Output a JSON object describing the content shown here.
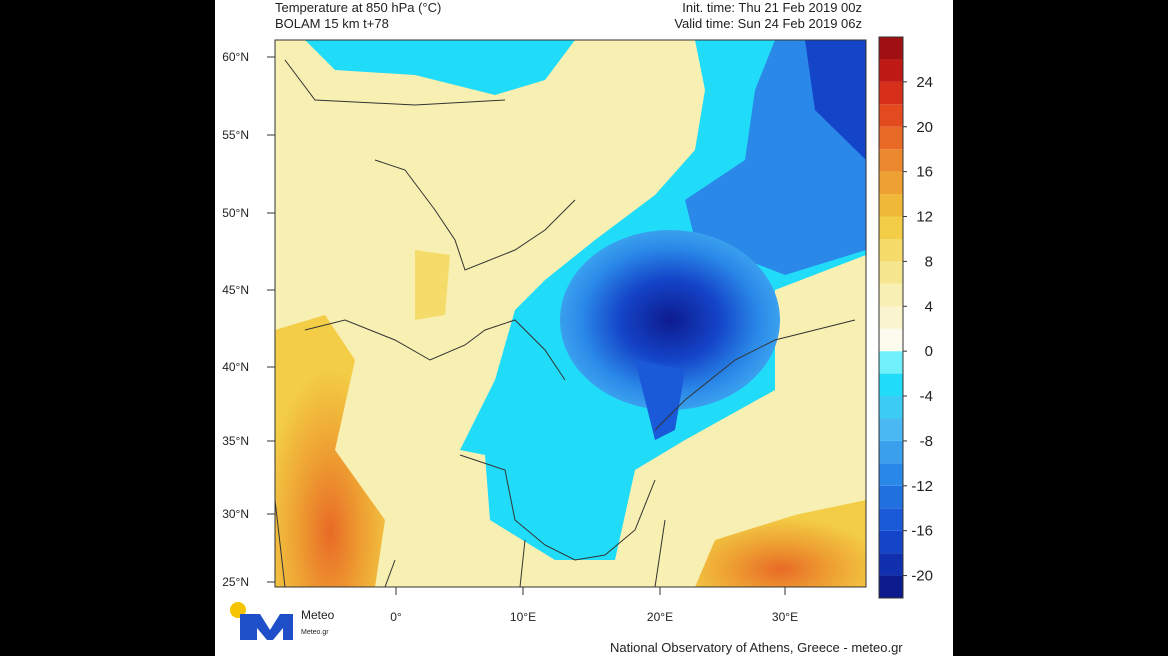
{
  "header": {
    "title": "Temperature at 850 hPa (°C)",
    "model": "BOLAM 15 km t+78",
    "init_time": "Init. time: Thu 21 Feb 2019 00z",
    "valid_time": "Valid time: Sun 24 Feb 2019 06z"
  },
  "map": {
    "lat_labels": [
      "60°N",
      "55°N",
      "50°N",
      "45°N",
      "40°N",
      "35°N",
      "30°N",
      "25°N"
    ],
    "lon_labels": [
      "0°",
      "10°E",
      "20°E",
      "30°E"
    ]
  },
  "colorbar": {
    "range": [
      -22,
      28
    ],
    "ticks": [
      24,
      20,
      16,
      12,
      8,
      4,
      0,
      -4,
      -8,
      -12,
      -16,
      -20
    ],
    "colors": [
      "#0d1b8e",
      "#1030b0",
      "#1444c8",
      "#1a5ad8",
      "#2070e0",
      "#2a88e8",
      "#3aa0ee",
      "#4ab8f2",
      "#3ccbf5",
      "#20dcf8",
      "#6ff0fb",
      "#fbfbee",
      "#faf5cf",
      "#f8efb2",
      "#f6e690",
      "#f5dc6a",
      "#f3cd45",
      "#f0b838",
      "#eea032",
      "#eb872c",
      "#e86a26",
      "#e34a20",
      "#d6301b",
      "#c01a16",
      "#a00f12"
    ]
  },
  "logo": {
    "name": "Meteo",
    "tagline": "Meteo.gr"
  },
  "footer": "National Observatory of Athens, Greece - meteo.gr"
}
